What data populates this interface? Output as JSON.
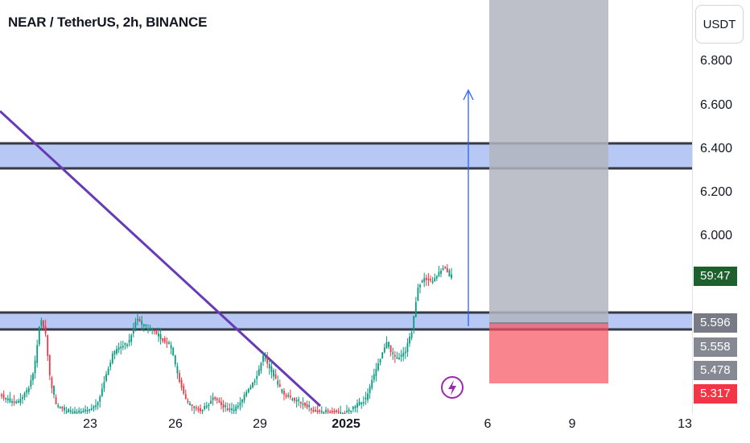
{
  "header": {
    "title": "NEAR / TetherUS, 2h, BINANCE"
  },
  "price_axis": {
    "currency": "USDT",
    "labels": [
      "6.800",
      "6.600",
      "6.400",
      "6.200",
      "6.000"
    ]
  },
  "badges": {
    "countdown": {
      "text": "59:47",
      "color": "#1e5f2e"
    },
    "p1": {
      "text": "5.596",
      "color": "#787b86"
    },
    "p2": {
      "text": "5.558",
      "color": "#868993"
    },
    "p3": {
      "text": "5.478",
      "color": "#868993"
    },
    "p4": {
      "text": "5.317",
      "color": "#f23645"
    }
  },
  "time_axis": {
    "labels": [
      {
        "text": "23",
        "bold": false
      },
      {
        "text": "26",
        "bold": false
      },
      {
        "text": "29",
        "bold": false
      },
      {
        "text": "2025",
        "bold": true
      },
      {
        "text": "6",
        "bold": false
      },
      {
        "text": "9",
        "bold": false
      },
      {
        "text": "13",
        "bold": false
      }
    ]
  },
  "colors": {
    "zone_fill": "#b8c8f5",
    "zone_border": "#363a45",
    "trendline": "#673ab7",
    "arrow": "#2962ff",
    "profit_zone": "#b2b5be",
    "loss_zone": "#f7525f",
    "candle_up": "#089981",
    "candle_down": "#f23645"
  },
  "icons": {
    "flash": "lightning-bolt-icon"
  }
}
